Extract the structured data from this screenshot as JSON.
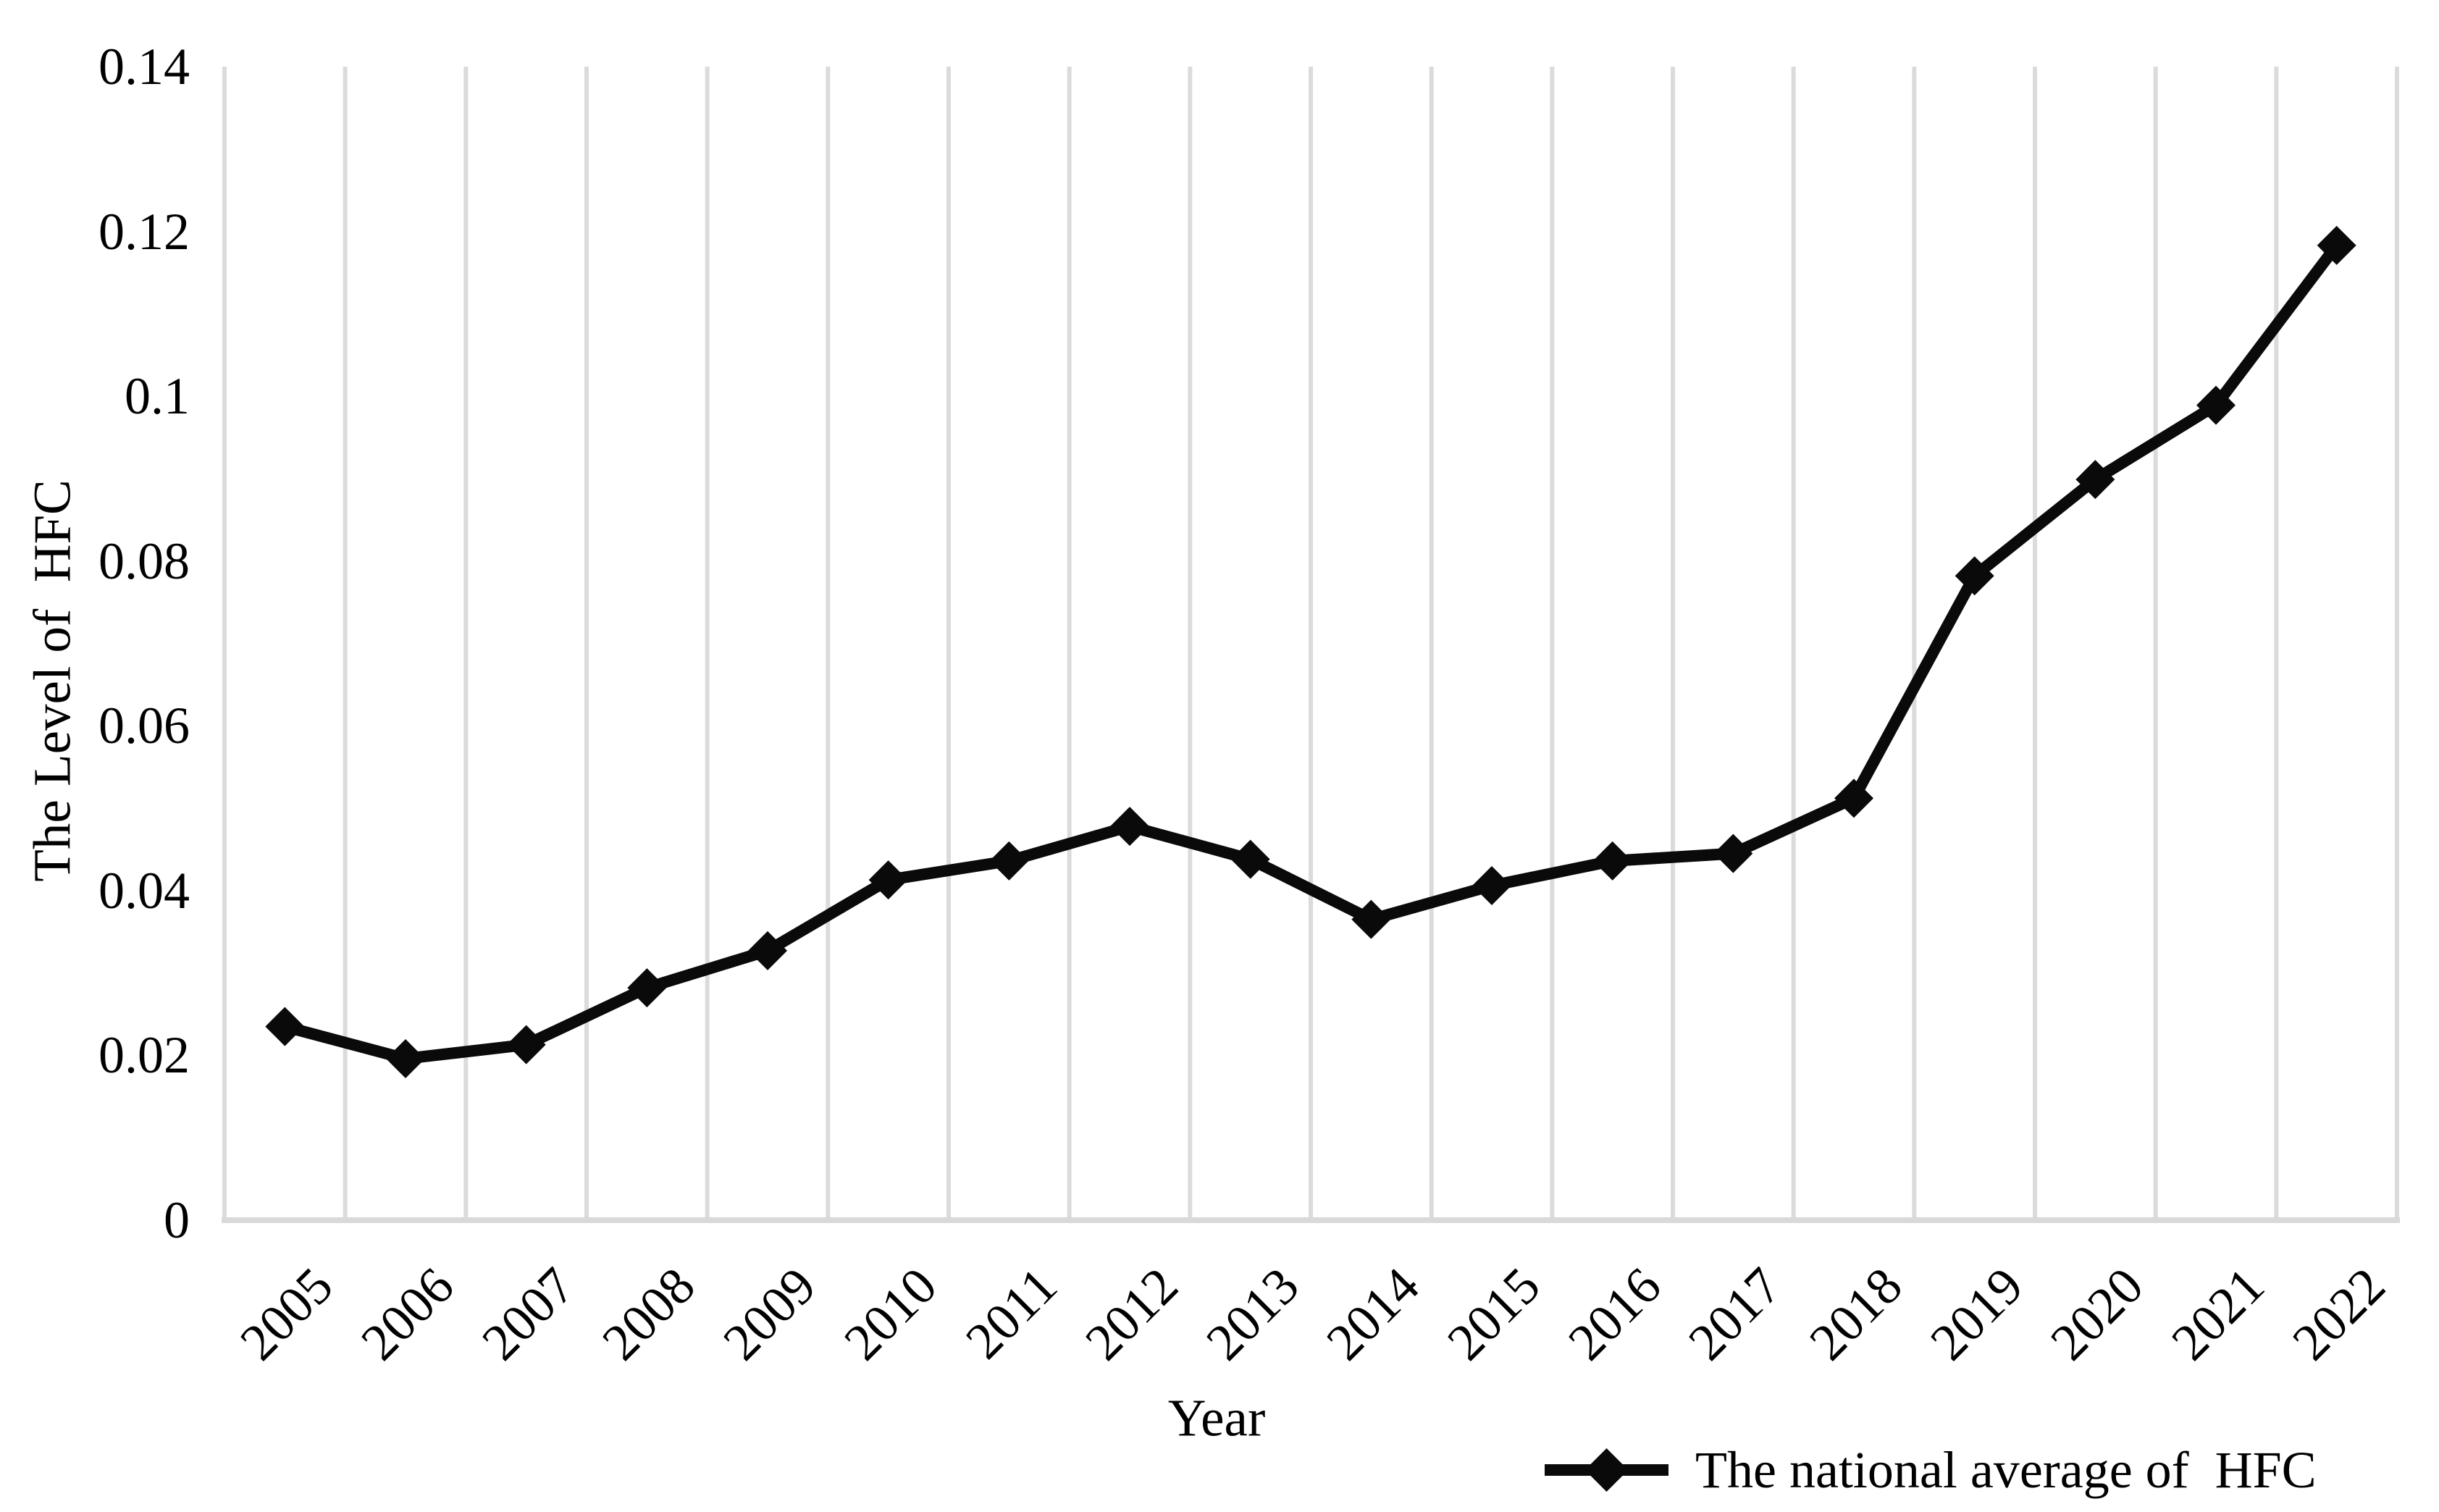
{
  "chart_data": {
    "type": "line",
    "title": "",
    "x_categories": [
      "2005",
      "2006",
      "2007",
      "2008",
      "2009",
      "2010",
      "2011",
      "2012",
      "2013",
      "2014",
      "2015",
      "2016",
      "2017",
      "2018",
      "2019",
      "2020",
      "2021",
      "2022"
    ],
    "series": [
      {
        "name": "The national average of  HFC",
        "values": [
          0.0235,
          0.0196,
          0.0213,
          0.0282,
          0.0327,
          0.0413,
          0.0436,
          0.0478,
          0.0438,
          0.0365,
          0.0406,
          0.0436,
          0.0445,
          0.0512,
          0.0782,
          0.0899,
          0.0989,
          0.1183
        ]
      }
    ],
    "xlabel": "Year",
    "ylabel": "The Level of  HFC",
    "ylim": [
      0,
      0.14
    ],
    "yticks": [
      0,
      0.02,
      0.04,
      0.06,
      0.08,
      0.1,
      0.12,
      0.14
    ],
    "ytick_labels": [
      "0",
      "0.02",
      "0.04",
      "0.06",
      "0.08",
      "0.1",
      "0.12",
      "0.14"
    ],
    "grid": "vertical-only",
    "legend_position": "bottom-right",
    "marker": "diamond",
    "colors": {
      "line": "#0a0a0a",
      "marker": "#0a0a0a",
      "gridline": "#dbdbdb",
      "axis_line": "#d9d9d9",
      "text": "#000000",
      "background": "#ffffff"
    }
  }
}
